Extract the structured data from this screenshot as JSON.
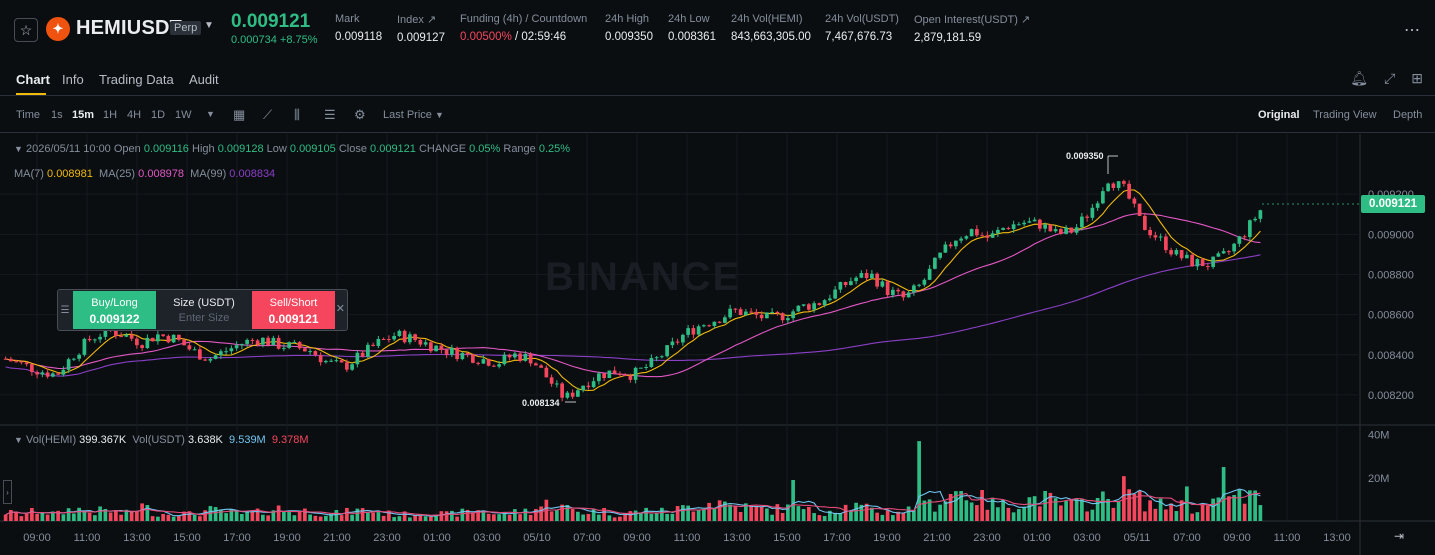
{
  "header": {
    "symbol": "HEMIUSDT",
    "contract_type": "Perp",
    "last_price": "0.009121",
    "change": "0.000734 +8.75%",
    "stats": [
      {
        "label": "Mark",
        "value": "0.009118"
      },
      {
        "label": "Index ↗",
        "value": "0.009127"
      },
      {
        "label": "Funding (4h) / Countdown",
        "value_rate": "0.00500%",
        "value_countdown": " / 02:59:46"
      },
      {
        "label": "24h High",
        "value": "0.009350"
      },
      {
        "label": "24h Low",
        "value": "0.008361"
      },
      {
        "label": "24h Vol(HEMI)",
        "value": "843,663,305.00"
      },
      {
        "label": "24h Vol(USDT)",
        "value": "7,467,676.73"
      },
      {
        "label": "Open Interest(USDT) ↗",
        "value": "2,879,181.59"
      }
    ]
  },
  "tabs": [
    "Chart",
    "Info",
    "Trading Data",
    "Audit"
  ],
  "toolbar": {
    "time_label": "Time",
    "intervals": [
      "1s",
      "15m",
      "1H",
      "4H",
      "1D",
      "1W"
    ],
    "active_interval": "15m",
    "price_type": "Last Price",
    "views": [
      "Original",
      "Trading View",
      "Depth"
    ],
    "active_view": "Original"
  },
  "legend": {
    "date": "2026/05/11 10:00",
    "open_label": "Open",
    "open": "0.009116",
    "high_label": "High",
    "high": "0.009128",
    "low_label": "Low",
    "low": "0.009105",
    "close_label": "Close",
    "close": "0.009121",
    "change_label": "CHANGE",
    "change": "0.05%",
    "range_label": "Range",
    "range": "0.25%",
    "ma7_label": "MA(7)",
    "ma7": "0.008981",
    "ma25_label": "MA(25)",
    "ma25": "0.008978",
    "ma99_label": "MA(99)",
    "ma99": "0.008834",
    "vol_base_label": "Vol(HEMI)",
    "vol_base": "399.367K",
    "vol_quote_label": "Vol(USDT)",
    "vol_quote": "3.638K",
    "vol_ma1": "9.539M",
    "vol_ma2": "9.378M"
  },
  "watermark": "BINANCE",
  "trade_widget": {
    "buy_label": "Buy/Long",
    "buy_price": "0.009122",
    "size_label": "Size (USDT)",
    "size_placeholder": "Enter Size",
    "sell_label": "Sell/Short",
    "sell_price": "0.009121"
  },
  "annotations": {
    "high": "0.009350",
    "low": "0.008134",
    "current_price_tag": "0.009121"
  },
  "chart_data": {
    "type": "candlestick",
    "y_ticks": [
      "0.009200",
      "0.009000",
      "0.008800",
      "0.008600",
      "0.008400",
      "0.008200"
    ],
    "ylim": [
      0.00805,
      0.00945
    ],
    "vol_ticks": [
      "40M",
      "20M"
    ],
    "vol_ylim": [
      0,
      44
    ],
    "x_ticks": [
      "09:00",
      "11:00",
      "13:00",
      "15:00",
      "17:00",
      "19:00",
      "21:00",
      "23:00",
      "01:00",
      "03:00",
      "05/10",
      "07:00",
      "09:00",
      "11:00",
      "13:00",
      "15:00",
      "17:00",
      "19:00",
      "21:00",
      "23:00",
      "01:00",
      "03:00",
      "05/11",
      "07:00",
      "09:00",
      "11:00",
      "13:00"
    ],
    "price_path": [
      0.00838,
      0.00835,
      0.00832,
      0.0083,
      0.0084,
      0.00848,
      0.00852,
      0.0085,
      0.00846,
      0.0085,
      0.00848,
      0.00842,
      0.00838,
      0.00842,
      0.00846,
      0.00848,
      0.00845,
      0.00844,
      0.00842,
      0.00836,
      0.00834,
      0.0084,
      0.00846,
      0.0085,
      0.00848,
      0.00845,
      0.00842,
      0.0084,
      0.00838,
      0.00836,
      0.0084,
      0.00838,
      0.00828,
      0.00818,
      0.00825,
      0.0083,
      0.00832,
      0.0083,
      0.00835,
      0.00842,
      0.0085,
      0.00855,
      0.00858,
      0.00862,
      0.0086,
      0.00858,
      0.0086,
      0.00864,
      0.00866,
      0.00872,
      0.00878,
      0.0088,
      0.00872,
      0.00868,
      0.00875,
      0.00888,
      0.00898,
      0.00902,
      0.00898,
      0.00904,
      0.00906,
      0.00905,
      0.009,
      0.00902,
      0.00912,
      0.00928,
      0.00922,
      0.00905,
      0.00898,
      0.0089,
      0.00886,
      0.00885,
      0.0089,
      0.009,
      0.00912
    ],
    "volume_path": [
      4,
      3,
      5,
      3,
      6,
      4,
      5,
      3,
      7,
      3,
      4,
      3,
      5,
      4,
      3,
      4,
      6,
      4,
      5,
      3,
      4,
      5,
      4,
      3,
      3,
      4,
      3,
      4,
      5,
      3,
      4,
      5,
      8,
      6,
      4,
      5,
      3,
      4,
      5,
      4,
      6,
      8,
      9,
      7,
      6,
      5,
      6,
      5,
      4,
      6,
      7,
      5,
      4,
      5,
      6,
      9,
      14,
      12,
      8,
      7,
      9,
      11,
      8,
      7,
      9,
      10,
      15,
      9,
      7,
      8,
      6,
      7,
      9,
      12,
      10
    ]
  }
}
